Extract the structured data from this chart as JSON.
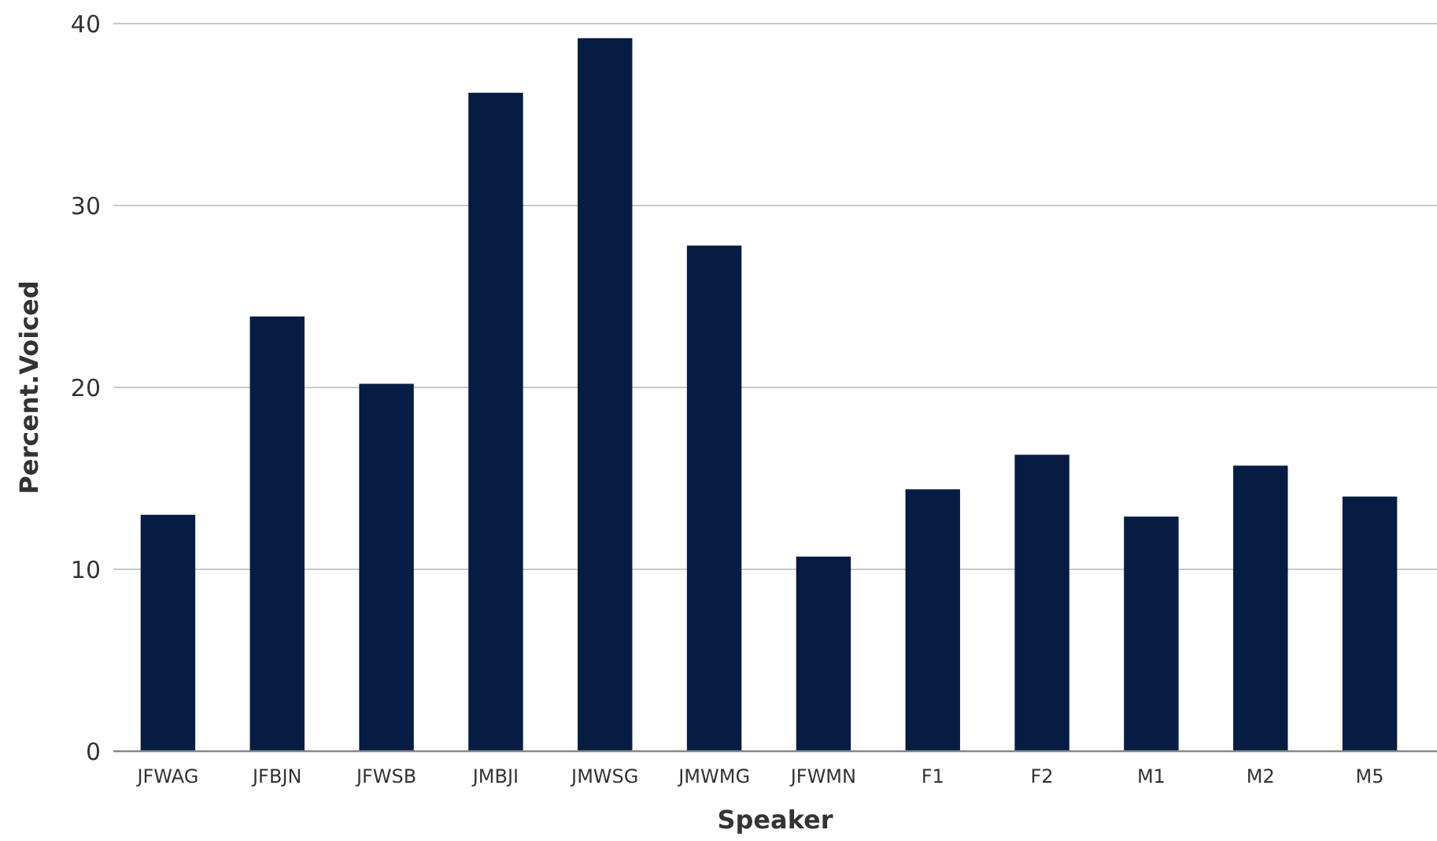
{
  "chart_data": {
    "type": "bar",
    "xlabel": "Speaker",
    "ylabel": "Percent.Voiced",
    "categories": [
      "JFWAG",
      "JFBJN",
      "JFWSB",
      "JMBJI",
      "JMWSG",
      "JMWMG",
      "JFWMN",
      "F1",
      "F2",
      "M1",
      "M2",
      "M5"
    ],
    "values": [
      13.0,
      23.9,
      20.2,
      36.2,
      39.2,
      27.8,
      10.7,
      14.4,
      16.3,
      12.9,
      15.7,
      14.0
    ],
    "color": "#061c42",
    "ylim": [
      0,
      40
    ],
    "yticks": [
      0,
      10,
      20,
      30,
      40
    ],
    "grid": "y"
  }
}
